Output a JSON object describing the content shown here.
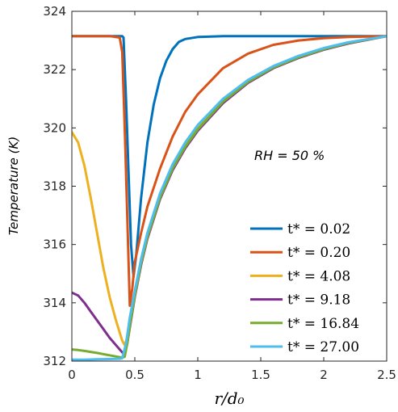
{
  "chart_data": {
    "type": "line",
    "xlabel": "r/d₀",
    "ylabel": "Temperature (K)",
    "xlim": [
      0,
      2.5
    ],
    "ylim": [
      312,
      324
    ],
    "xticks": [
      0,
      0.5,
      1,
      1.5,
      2,
      2.5
    ],
    "xtick_labels": [
      "0",
      "0.5",
      "1",
      "1.5",
      "2",
      "2.5"
    ],
    "yticks": [
      312,
      314,
      316,
      318,
      320,
      322,
      324
    ],
    "ytick_labels": [
      "312",
      "314",
      "316",
      "318",
      "320",
      "322",
      "324"
    ],
    "grid": false,
    "legend_position": "lower-right",
    "annotation": "RH = 50 %",
    "series": [
      {
        "name": "t* = 0.02",
        "legend_label": "t* = 0.02",
        "color": "#0072BD",
        "points": [
          [
            0,
            323.15
          ],
          [
            0.4,
            323.15
          ],
          [
            0.41,
            323.1
          ],
          [
            0.43,
            321.0
          ],
          [
            0.45,
            318.5
          ],
          [
            0.47,
            316.0
          ],
          [
            0.49,
            314.9
          ],
          [
            0.51,
            315.6
          ],
          [
            0.55,
            317.6
          ],
          [
            0.6,
            319.5
          ],
          [
            0.65,
            320.8
          ],
          [
            0.7,
            321.7
          ],
          [
            0.75,
            322.3
          ],
          [
            0.8,
            322.7
          ],
          [
            0.85,
            322.95
          ],
          [
            0.9,
            323.05
          ],
          [
            1.0,
            323.12
          ],
          [
            1.2,
            323.15
          ],
          [
            2.5,
            323.15
          ]
        ]
      },
      {
        "name": "t* = 0.20",
        "legend_label": "t* = 0.20",
        "color": "#D95319",
        "points": [
          [
            0,
            323.15
          ],
          [
            0.3,
            323.15
          ],
          [
            0.38,
            323.1
          ],
          [
            0.4,
            322.6
          ],
          [
            0.42,
            320.0
          ],
          [
            0.44,
            317.0
          ],
          [
            0.46,
            313.9
          ],
          [
            0.48,
            314.5
          ],
          [
            0.5,
            315.4
          ],
          [
            0.55,
            316.4
          ],
          [
            0.6,
            317.3
          ],
          [
            0.7,
            318.6
          ],
          [
            0.8,
            319.7
          ],
          [
            0.9,
            320.55
          ],
          [
            1.0,
            321.15
          ],
          [
            1.2,
            322.05
          ],
          [
            1.4,
            322.55
          ],
          [
            1.6,
            322.85
          ],
          [
            1.8,
            323.0
          ],
          [
            2.0,
            323.08
          ],
          [
            2.2,
            323.12
          ],
          [
            2.5,
            323.15
          ]
        ]
      },
      {
        "name": "t* = 4.08",
        "legend_label": "t* = 4.08",
        "color": "#EDB120",
        "points": [
          [
            0,
            319.85
          ],
          [
            0.05,
            319.5
          ],
          [
            0.1,
            318.7
          ],
          [
            0.15,
            317.6
          ],
          [
            0.2,
            316.4
          ],
          [
            0.25,
            315.2
          ],
          [
            0.3,
            314.2
          ],
          [
            0.35,
            313.4
          ],
          [
            0.4,
            312.7
          ],
          [
            0.42,
            312.55
          ],
          [
            0.44,
            312.8
          ],
          [
            0.47,
            313.6
          ],
          [
            0.5,
            314.4
          ],
          [
            0.55,
            315.5
          ],
          [
            0.6,
            316.35
          ],
          [
            0.7,
            317.7
          ],
          [
            0.8,
            318.7
          ],
          [
            0.9,
            319.45
          ],
          [
            1.0,
            320.05
          ],
          [
            1.2,
            320.95
          ],
          [
            1.4,
            321.6
          ],
          [
            1.6,
            322.1
          ],
          [
            1.8,
            322.45
          ],
          [
            2.0,
            322.7
          ],
          [
            2.2,
            322.9
          ],
          [
            2.5,
            323.15
          ]
        ]
      },
      {
        "name": "t* = 9.18",
        "legend_label": "t* = 9.18",
        "color": "#7E2F8E",
        "points": [
          [
            0,
            314.35
          ],
          [
            0.05,
            314.25
          ],
          [
            0.1,
            314.0
          ],
          [
            0.15,
            313.7
          ],
          [
            0.2,
            313.4
          ],
          [
            0.25,
            313.1
          ],
          [
            0.3,
            312.8
          ],
          [
            0.35,
            312.55
          ],
          [
            0.4,
            312.3
          ],
          [
            0.42,
            312.25
          ],
          [
            0.44,
            312.6
          ],
          [
            0.47,
            313.4
          ],
          [
            0.5,
            314.2
          ],
          [
            0.55,
            315.3
          ],
          [
            0.6,
            316.2
          ],
          [
            0.7,
            317.55
          ],
          [
            0.8,
            318.55
          ],
          [
            0.9,
            319.3
          ],
          [
            1.0,
            319.9
          ],
          [
            1.2,
            320.85
          ],
          [
            1.4,
            321.55
          ],
          [
            1.6,
            322.05
          ],
          [
            1.8,
            322.4
          ],
          [
            2.0,
            322.68
          ],
          [
            2.2,
            322.9
          ],
          [
            2.5,
            323.15
          ]
        ]
      },
      {
        "name": "t* = 16.84",
        "legend_label": "t* = 16.84",
        "color": "#77AC30",
        "points": [
          [
            0,
            312.4
          ],
          [
            0.05,
            312.38
          ],
          [
            0.1,
            312.35
          ],
          [
            0.2,
            312.28
          ],
          [
            0.3,
            312.2
          ],
          [
            0.4,
            312.12
          ],
          [
            0.42,
            312.15
          ],
          [
            0.44,
            312.6
          ],
          [
            0.47,
            313.45
          ],
          [
            0.5,
            314.25
          ],
          [
            0.55,
            315.35
          ],
          [
            0.6,
            316.25
          ],
          [
            0.7,
            317.6
          ],
          [
            0.8,
            318.6
          ],
          [
            0.9,
            319.35
          ],
          [
            1.0,
            319.95
          ],
          [
            1.2,
            320.9
          ],
          [
            1.4,
            321.58
          ],
          [
            1.6,
            322.07
          ],
          [
            1.8,
            322.42
          ],
          [
            2.0,
            322.7
          ],
          [
            2.2,
            322.92
          ],
          [
            2.5,
            323.15
          ]
        ]
      },
      {
        "name": "t* = 27.00",
        "legend_label": "t* = 27.00",
        "color": "#4DBEEE",
        "points": [
          [
            0,
            312.05
          ],
          [
            0.1,
            312.05
          ],
          [
            0.2,
            312.06
          ],
          [
            0.3,
            312.07
          ],
          [
            0.38,
            312.08
          ],
          [
            0.4,
            312.1
          ],
          [
            0.43,
            312.6
          ],
          [
            0.46,
            313.5
          ],
          [
            0.5,
            314.4
          ],
          [
            0.55,
            315.5
          ],
          [
            0.6,
            316.4
          ],
          [
            0.7,
            317.75
          ],
          [
            0.8,
            318.75
          ],
          [
            0.9,
            319.5
          ],
          [
            1.0,
            320.1
          ],
          [
            1.2,
            321.0
          ],
          [
            1.4,
            321.65
          ],
          [
            1.6,
            322.12
          ],
          [
            1.8,
            322.47
          ],
          [
            2.0,
            322.74
          ],
          [
            2.2,
            322.94
          ],
          [
            2.5,
            323.15
          ]
        ]
      }
    ]
  }
}
